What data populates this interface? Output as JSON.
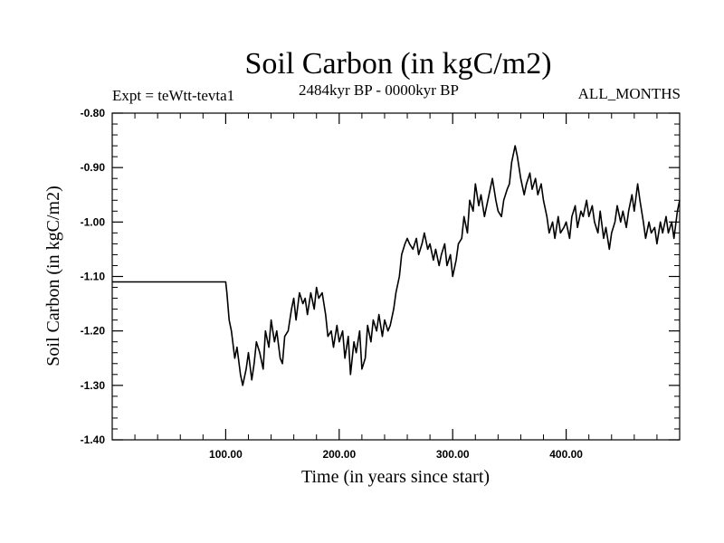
{
  "chart_data": {
    "type": "line",
    "title": "Soil Carbon (in kgC/m2)",
    "subtitle": "2484kyr BP - 0000kyr BP",
    "left_label": "Expt = teWtt-tevta1",
    "right_label": "ALL_MONTHS",
    "xlabel": "Time (in years since start)",
    "ylabel": "Soil Carbon (in kgC/m2)",
    "xlim": [
      0,
      500
    ],
    "ylim": [
      -1.4,
      -0.8
    ],
    "xticks": [
      100,
      200,
      300,
      400
    ],
    "xtick_labels": [
      "100.00",
      "200.00",
      "300.00",
      "400.00"
    ],
    "yticks": [
      -1.4,
      -1.3,
      -1.2,
      -1.1,
      -1.0,
      -0.9,
      -0.8
    ],
    "ytick_labels": [
      "-1.40",
      "-1.30",
      "-1.20",
      "-1.10",
      "-1.00",
      "-0.90",
      "-0.80"
    ],
    "series": [
      {
        "name": "Soil Carbon",
        "color": "#000000",
        "x": [
          0,
          100,
          101,
          103,
          105,
          108,
          110,
          113,
          115,
          118,
          120,
          123,
          125,
          127,
          130,
          133,
          135,
          138,
          140,
          143,
          145,
          148,
          150,
          152,
          155,
          158,
          160,
          162,
          165,
          168,
          170,
          172,
          175,
          178,
          180,
          182,
          185,
          188,
          190,
          193,
          195,
          198,
          200,
          203,
          205,
          208,
          210,
          213,
          215,
          218,
          220,
          223,
          225,
          228,
          230,
          233,
          235,
          238,
          240,
          243,
          245,
          248,
          250,
          253,
          255,
          258,
          260,
          262,
          265,
          268,
          270,
          273,
          275,
          278,
          280,
          283,
          285,
          288,
          290,
          293,
          295,
          298,
          300,
          303,
          305,
          308,
          310,
          313,
          315,
          318,
          320,
          323,
          325,
          328,
          330,
          333,
          335,
          338,
          340,
          343,
          345,
          348,
          350,
          352,
          355,
          357,
          360,
          363,
          365,
          368,
          370,
          373,
          375,
          378,
          380,
          383,
          385,
          388,
          390,
          393,
          395,
          398,
          400,
          403,
          405,
          408,
          410,
          413,
          415,
          418,
          420,
          423,
          425,
          428,
          430,
          433,
          435,
          438,
          440,
          443,
          445,
          448,
          450,
          453,
          455,
          458,
          460,
          463,
          465,
          468,
          470,
          473,
          475,
          478,
          480,
          483,
          485,
          488,
          490,
          493,
          495,
          498,
          500
        ],
        "y": [
          -1.11,
          -1.11,
          -1.13,
          -1.18,
          -1.2,
          -1.25,
          -1.23,
          -1.28,
          -1.3,
          -1.27,
          -1.24,
          -1.29,
          -1.26,
          -1.22,
          -1.24,
          -1.27,
          -1.2,
          -1.23,
          -1.18,
          -1.22,
          -1.2,
          -1.25,
          -1.26,
          -1.21,
          -1.2,
          -1.16,
          -1.14,
          -1.18,
          -1.13,
          -1.15,
          -1.14,
          -1.17,
          -1.13,
          -1.16,
          -1.12,
          -1.14,
          -1.13,
          -1.17,
          -1.21,
          -1.2,
          -1.23,
          -1.19,
          -1.22,
          -1.2,
          -1.25,
          -1.21,
          -1.28,
          -1.22,
          -1.24,
          -1.2,
          -1.27,
          -1.25,
          -1.19,
          -1.22,
          -1.18,
          -1.2,
          -1.17,
          -1.21,
          -1.18,
          -1.2,
          -1.19,
          -1.16,
          -1.13,
          -1.1,
          -1.06,
          -1.04,
          -1.03,
          -1.04,
          -1.05,
          -1.03,
          -1.06,
          -1.04,
          -1.02,
          -1.05,
          -1.04,
          -1.07,
          -1.05,
          -1.08,
          -1.06,
          -1.04,
          -1.08,
          -1.06,
          -1.1,
          -1.07,
          -1.04,
          -1.03,
          -0.99,
          -1.02,
          -0.96,
          -0.98,
          -0.93,
          -0.97,
          -0.95,
          -0.99,
          -0.97,
          -0.94,
          -0.92,
          -0.96,
          -0.98,
          -0.99,
          -0.96,
          -0.94,
          -0.93,
          -0.89,
          -0.86,
          -0.88,
          -0.92,
          -0.95,
          -0.93,
          -0.91,
          -0.94,
          -0.92,
          -0.95,
          -0.93,
          -0.96,
          -0.99,
          -1.02,
          -1.0,
          -1.03,
          -0.99,
          -1.02,
          -1.01,
          -1.0,
          -1.03,
          -0.99,
          -0.97,
          -1.01,
          -0.98,
          -0.99,
          -0.96,
          -0.99,
          -0.97,
          -1.0,
          -1.02,
          -0.98,
          -1.03,
          -1.01,
          -1.05,
          -1.02,
          -1.0,
          -0.97,
          -1.0,
          -0.98,
          -1.01,
          -0.98,
          -0.95,
          -0.98,
          -0.93,
          -0.96,
          -1.0,
          -1.03,
          -1.0,
          -1.02,
          -1.01,
          -1.04,
          -1.0,
          -1.02,
          -0.99,
          -1.02,
          -1.0,
          -1.03,
          -0.98,
          -0.96
        ]
      }
    ]
  }
}
